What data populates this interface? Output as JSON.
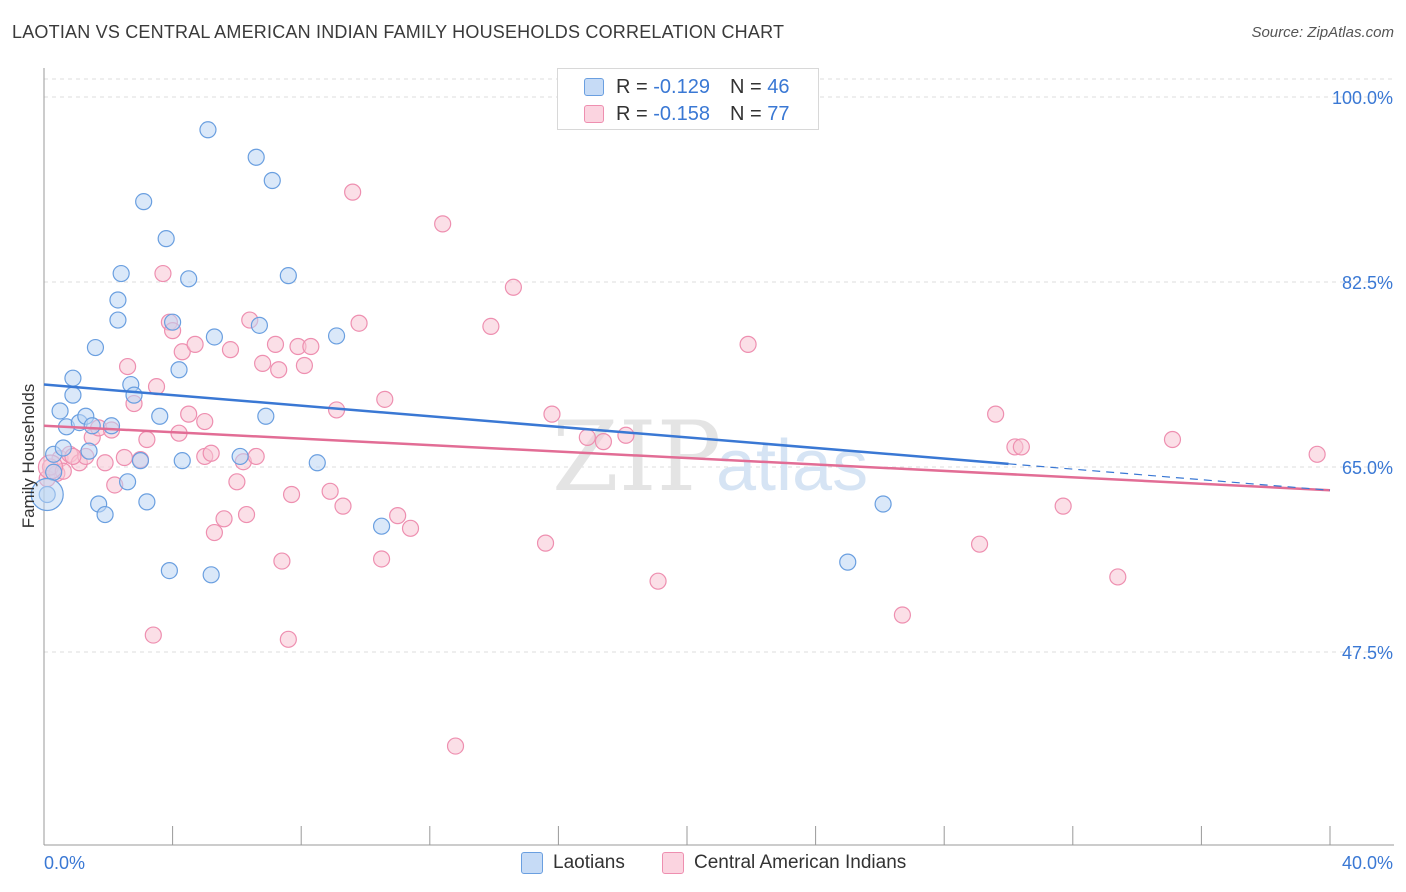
{
  "title": "LAOTIAN VS CENTRAL AMERICAN INDIAN FAMILY HOUSEHOLDS CORRELATION CHART",
  "source": "Source: ZipAtlas.com",
  "watermark": {
    "zip": "ZIP",
    "atlas": "atlas"
  },
  "legend_top": {
    "rows": [
      {
        "r_label": "R =",
        "r_value": "-0.129",
        "n_label": "N =",
        "n_value": "46",
        "color": "#a8c8f0",
        "stroke": "#6a9fe0"
      },
      {
        "r_label": "R =",
        "r_value": "-0.158",
        "n_label": "N =",
        "n_value": "77",
        "color": "#f8c4d4",
        "stroke": "#ee8fb0"
      }
    ]
  },
  "legend_bottom": [
    {
      "label": "Laotians",
      "color": "#c6dbf6",
      "stroke": "#6a9fe0"
    },
    {
      "label": "Central American Indians",
      "color": "#fbd4e0",
      "stroke": "#ee8fb0"
    }
  ],
  "chart_data": {
    "type": "scatter",
    "ylabel": "Family Households",
    "xlabel": "",
    "xlim": [
      0,
      40
    ],
    "ylim": [
      30,
      102.5
    ],
    "x_tick_labels": [
      "0.0%",
      "40.0%"
    ],
    "y_ticks": [
      47.5,
      65.0,
      82.5,
      100.0
    ],
    "y_tick_labels": [
      "47.5%",
      "65.0%",
      "82.5%",
      "100.0%"
    ],
    "grid": true,
    "colors": {
      "blue": "#3a78d4",
      "pink": "#e26d95",
      "blue_fill": "#a8c8f0",
      "pink_fill": "#f8c4d4",
      "axis_label": "#3a78d4"
    },
    "series": [
      {
        "name": "Laotians",
        "trend": {
          "x_start": 0,
          "y_start": 72.8,
          "x_end": 30.0,
          "y_end": 65.3,
          "dashed_to_x": 40,
          "dashed_to_y": 62.8
        },
        "points": [
          [
            0.1,
            62.4
          ],
          [
            0.3,
            66.2
          ],
          [
            0.3,
            64.5
          ],
          [
            0.5,
            70.3
          ],
          [
            0.6,
            66.8
          ],
          [
            0.7,
            68.8
          ],
          [
            0.9,
            71.8
          ],
          [
            0.9,
            73.4
          ],
          [
            1.1,
            69.2
          ],
          [
            1.3,
            69.8
          ],
          [
            1.4,
            66.5
          ],
          [
            1.5,
            68.9
          ],
          [
            1.6,
            76.3
          ],
          [
            1.7,
            61.5
          ],
          [
            1.9,
            60.5
          ],
          [
            2.1,
            68.9
          ],
          [
            2.3,
            78.9
          ],
          [
            2.3,
            80.8
          ],
          [
            2.4,
            83.3
          ],
          [
            2.6,
            63.6
          ],
          [
            2.7,
            72.8
          ],
          [
            2.8,
            71.8
          ],
          [
            3.0,
            65.6
          ],
          [
            3.1,
            90.1
          ],
          [
            3.2,
            61.7
          ],
          [
            3.6,
            69.8
          ],
          [
            3.8,
            86.6
          ],
          [
            3.9,
            55.2
          ],
          [
            4.0,
            78.7
          ],
          [
            4.2,
            74.2
          ],
          [
            4.3,
            65.6
          ],
          [
            4.5,
            82.8
          ],
          [
            5.1,
            96.9
          ],
          [
            5.2,
            54.8
          ],
          [
            5.3,
            77.3
          ],
          [
            6.1,
            66.0
          ],
          [
            6.6,
            94.3
          ],
          [
            6.7,
            78.4
          ],
          [
            6.9,
            69.8
          ],
          [
            7.1,
            92.1
          ],
          [
            7.6,
            83.1
          ],
          [
            8.5,
            65.4
          ],
          [
            9.1,
            77.4
          ],
          [
            10.5,
            59.4
          ],
          [
            25.0,
            56.0
          ],
          [
            26.1,
            61.5
          ]
        ]
      },
      {
        "name": "Central American Indians",
        "trend": {
          "x_start": 0,
          "y_start": 68.9,
          "x_end": 40,
          "y_end": 62.8
        },
        "points": [
          [
            0.1,
            63.9
          ],
          [
            0.4,
            64.4
          ],
          [
            0.5,
            65.8
          ],
          [
            0.8,
            66.2
          ],
          [
            1.1,
            65.4
          ],
          [
            1.3,
            66.0
          ],
          [
            1.5,
            67.8
          ],
          [
            1.7,
            68.7
          ],
          [
            1.9,
            65.4
          ],
          [
            2.1,
            68.5
          ],
          [
            2.2,
            63.3
          ],
          [
            2.5,
            65.9
          ],
          [
            2.6,
            74.5
          ],
          [
            2.8,
            71.0
          ],
          [
            3.0,
            65.7
          ],
          [
            3.2,
            67.6
          ],
          [
            3.4,
            49.1
          ],
          [
            3.5,
            72.6
          ],
          [
            3.7,
            83.3
          ],
          [
            3.9,
            78.7
          ],
          [
            4.0,
            77.9
          ],
          [
            4.2,
            68.2
          ],
          [
            4.3,
            75.9
          ],
          [
            4.5,
            70.0
          ],
          [
            4.7,
            76.6
          ],
          [
            5.0,
            69.3
          ],
          [
            5.0,
            66.0
          ],
          [
            5.2,
            66.3
          ],
          [
            5.3,
            58.8
          ],
          [
            5.6,
            60.1
          ],
          [
            5.8,
            76.1
          ],
          [
            6.0,
            63.6
          ],
          [
            6.2,
            65.5
          ],
          [
            6.3,
            60.5
          ],
          [
            6.4,
            78.9
          ],
          [
            6.6,
            66.0
          ],
          [
            6.8,
            74.8
          ],
          [
            7.2,
            76.6
          ],
          [
            7.3,
            74.2
          ],
          [
            7.4,
            56.1
          ],
          [
            7.6,
            48.7
          ],
          [
            7.7,
            62.4
          ],
          [
            7.9,
            76.4
          ],
          [
            8.1,
            74.6
          ],
          [
            8.3,
            76.4
          ],
          [
            8.9,
            62.7
          ],
          [
            9.1,
            70.4
          ],
          [
            9.3,
            61.3
          ],
          [
            9.6,
            91.0
          ],
          [
            9.8,
            78.6
          ],
          [
            10.5,
            56.3
          ],
          [
            10.6,
            71.4
          ],
          [
            11.0,
            60.4
          ],
          [
            11.4,
            59.2
          ],
          [
            12.4,
            88.0
          ],
          [
            12.8,
            38.6
          ],
          [
            13.9,
            78.3
          ],
          [
            14.6,
            82.0
          ],
          [
            15.6,
            57.8
          ],
          [
            15.8,
            70.0
          ],
          [
            16.9,
            67.8
          ],
          [
            17.4,
            67.4
          ],
          [
            18.1,
            68.0
          ],
          [
            19.1,
            54.2
          ],
          [
            21.9,
            76.6
          ],
          [
            26.7,
            51.0
          ],
          [
            29.1,
            57.7
          ],
          [
            29.6,
            70.0
          ],
          [
            30.2,
            66.9
          ],
          [
            30.4,
            66.9
          ],
          [
            31.7,
            61.3
          ],
          [
            33.4,
            54.6
          ],
          [
            35.1,
            67.6
          ],
          [
            39.6,
            66.2
          ],
          [
            0.2,
            65.0
          ],
          [
            0.6,
            64.6
          ],
          [
            0.9,
            66.0
          ]
        ]
      }
    ]
  }
}
